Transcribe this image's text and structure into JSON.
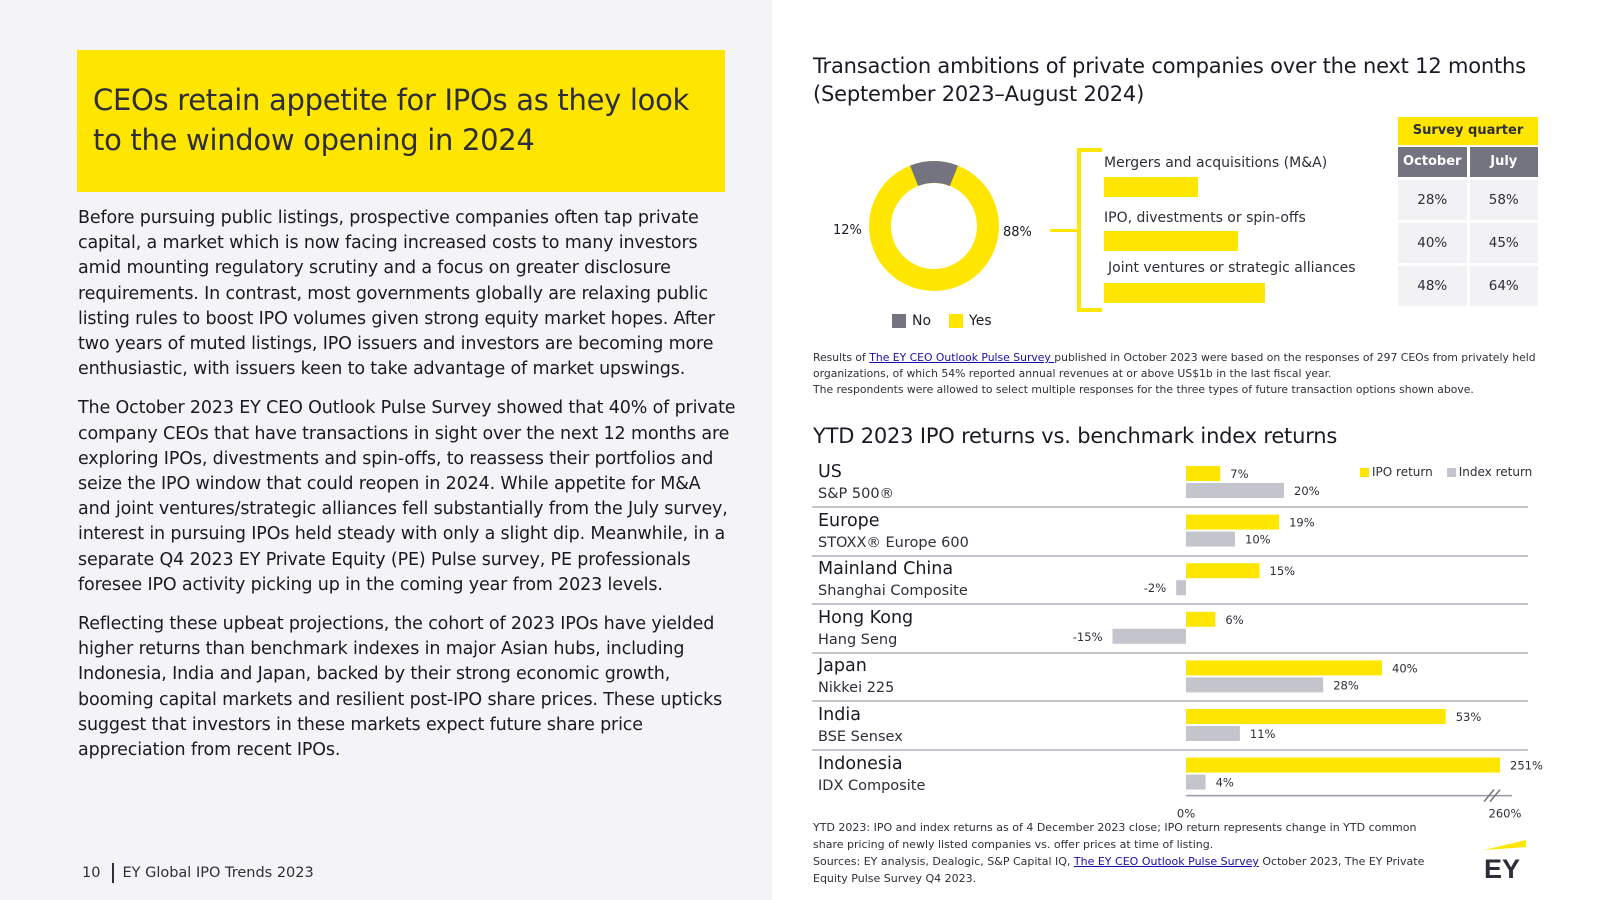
{
  "left": {
    "headline": "CEOs retain appetite for IPOs as they look to the window opening in 2024",
    "paragraphs": [
      "Before pursuing public listings, prospective companies often tap private capital, a market which is now facing increased costs to many investors amid mounting regulatory scrutiny and a focus on greater disclosure requirements. In contrast, most governments globally are relaxing public listing rules to boost IPO volumes given strong equity market hopes. After two years of muted listings, IPO issuers and investors are becoming more enthusiastic, with issuers keen to take advantage of market upswings.",
      "The October 2023 EY CEO Outlook Pulse Survey showed that 40% of private company CEOs that have transactions in sight over the next 12 months are exploring IPOs, divestments and spin-offs, to reassess their portfolios and seize the IPO window that could reopen in 2024. While appetite for M&A and joint ventures/strategic alliances fell substantially from the July survey, interest in pursuing IPOs held steady with only a slight dip. Meanwhile, in a separate Q4 2023 EY Private Equity (PE) Pulse survey, PE professionals foresee IPO activity picking up in the coming year from 2023 levels.",
      "Reflecting these upbeat projections, the cohort of 2023 IPOs have yielded higher returns than benchmark indexes in major Asian hubs, including Indonesia, India and Japan, backed by their strong economic growth, booming capital markets and resilient post-IPO share prices. These upticks suggest that investors in these markets expect future share price appreciation from recent IPOs."
    ],
    "page_number": "10",
    "footer_title": "EY Global IPO Trends 2023"
  },
  "transaction": {
    "title": "Transaction ambitions of private companies over the next 12 months (September 2023–August 2024)",
    "donut": {
      "no_pct": "12%",
      "yes_pct": "88%",
      "no_value": 12,
      "yes_value": 88,
      "legend_no": "No",
      "legend_yes": "Yes"
    },
    "types": [
      {
        "label": "Mergers and acquisitions (M&A)",
        "october": 28
      },
      {
        "label": "IPO, divestments or spin-offs",
        "october": 40
      },
      {
        "label": "Joint ventures or strategic alliances",
        "october": 48
      }
    ],
    "survey_table": {
      "header": "Survey quarter",
      "columns": [
        "October",
        "July"
      ],
      "rows": [
        [
          "28%",
          "58%"
        ],
        [
          "40%",
          "45%"
        ],
        [
          "48%",
          "64%"
        ]
      ]
    },
    "note_prefix": "Results of ",
    "note_link": "The EY CEO Outlook Pulse Survey ",
    "note_rest": "published in October 2023 were based on the responses of 297 CEOs from privately held organizations, of which 54% reported annual revenues at or above US$1b in the last fiscal year.",
    "note_line2": "The respondents were allowed to select multiple responses for the three types of future transaction options shown above."
  },
  "returns": {
    "title": "YTD 2023 IPO returns vs. benchmark index returns",
    "legend_ipo": "IPO return",
    "legend_index": "Index return",
    "notes": "YTD 2023: IPO and index returns as of 4 December 2023 close; IPO return represents change in YTD common share pricing of newly listed companies vs. offer prices at time of listing.",
    "sources_prefix": "Sources: EY analysis, Dealogic, S&P Capital IQ, ",
    "sources_link": "The EY CEO Outlook Pulse Survey",
    "sources_rest": " October 2023, The EY Private Equity Pulse Survey Q4 2023."
  },
  "chart_data": {
    "type": "bar",
    "title": "YTD 2023 IPO returns vs. benchmark index returns",
    "orientation": "horizontal",
    "categories": [
      "US",
      "Europe",
      "Mainland China",
      "Hong Kong",
      "Japan",
      "India",
      "Indonesia"
    ],
    "subcategories": [
      "S&P 500®",
      "STOXX® Europe 600",
      "Shanghai Composite",
      "Hang Seng",
      "Nikkei 225",
      "BSE Sensex",
      "IDX Composite"
    ],
    "series": [
      {
        "name": "IPO return",
        "values": [
          7,
          19,
          15,
          6,
          40,
          53,
          251
        ],
        "labels": [
          "7%",
          "19%",
          "15%",
          "6%",
          "40%",
          "53%",
          "251%"
        ]
      },
      {
        "name": "Index return",
        "values": [
          20,
          10,
          -2,
          -15,
          28,
          11,
          4
        ],
        "labels": [
          "20%",
          "10%",
          "-2%",
          "-15%",
          "28%",
          "11%",
          "4%"
        ]
      }
    ],
    "x_ticks": [
      "0%",
      "260%"
    ],
    "axis_break": true,
    "colors": {
      "ipo": "#ffe600",
      "index": "#c4c4cd"
    }
  },
  "brand": {
    "logo_text": "EY",
    "accent": "#ffe600",
    "grey": "#747480"
  }
}
